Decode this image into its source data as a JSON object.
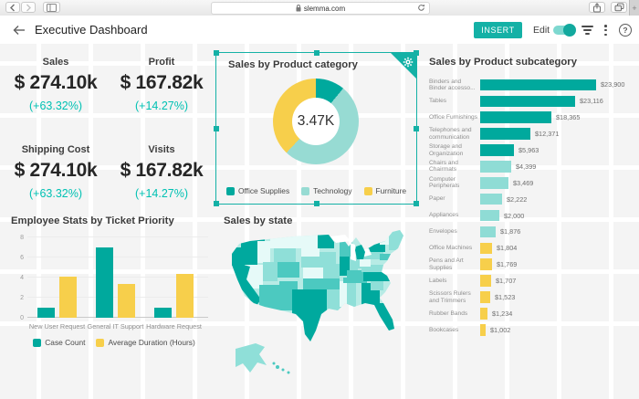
{
  "browser": {
    "url": "slemma.com",
    "new_tab_glyph": "+"
  },
  "header": {
    "title": "Executive Dashboard",
    "insert_button": "INSERT",
    "edit_label": "Edit",
    "edit_toggle_on": true,
    "help_glyph": "?"
  },
  "accent_color": "#14b1a6",
  "kpi_change_color": "#00c1b3",
  "kpis": [
    {
      "title": "Sales",
      "value": "$ 274.10k",
      "change": "(+63.32%)"
    },
    {
      "title": "Profit",
      "value": "$ 167.82k",
      "change": "(+14.27%)"
    },
    {
      "title": "Shipping Cost",
      "value": "$ 274.10k",
      "change": "(+63.32%)"
    },
    {
      "title": "Visits",
      "value": "$ 167.82k",
      "change": "(+14.27%)"
    }
  ],
  "chart_data": [
    {
      "id": "category_donut",
      "type": "pie",
      "title": "Sales by Product category",
      "selected": true,
      "center_label": "3.47K",
      "categories": [
        "Office Supplies",
        "Technology",
        "Furniture"
      ],
      "values": [
        11,
        51,
        38
      ],
      "unit": "percent (estimated from arc angles)",
      "colors": [
        "#00a99d",
        "#97dbd3",
        "#f7cf4b"
      ],
      "legend_position": "bottom"
    },
    {
      "id": "subcategory_bar",
      "type": "bar",
      "orientation": "horizontal",
      "title": "Sales by Product subcategory",
      "categories": [
        "Binders and Binder accesso...",
        "Tables",
        "Office Furnishings",
        "Telephones and communication",
        "Storage and Organization",
        "Chairs and Chairmats",
        "Computer Peripherals",
        "Paper",
        "Appliances",
        "Envelopes",
        "Office Machines",
        "Pens and Art Supplies",
        "Labels",
        "Scissors Rulers and Trimmers",
        "Rubber Bands",
        "Bookcases"
      ],
      "values": [
        23900,
        23116,
        18365,
        12371,
        5963,
        4399,
        3469,
        2222,
        2000,
        1876,
        1804,
        1769,
        1707,
        1523,
        1234,
        1002
      ],
      "value_labels": [
        "$23,900",
        "$23,116",
        "$18,365",
        "$12,371",
        "$5,963",
        "$4,399",
        "$3,469",
        "$2,222",
        "$2,000",
        "$1,876",
        "$1,804",
        "$1,769",
        "$1,707",
        "$1,523",
        "$1,234",
        "$1,002"
      ],
      "bar_fraction": [
        1.0,
        0.82,
        0.615,
        0.435,
        0.29,
        0.265,
        0.245,
        0.19,
        0.165,
        0.13,
        0.105,
        0.1,
        0.095,
        0.085,
        0.065,
        0.05
      ],
      "bar_colors": [
        "#00a99d",
        "#00a99d",
        "#00a99d",
        "#00a99d",
        "#00a99d",
        "#8fdcd5",
        "#8fdcd5",
        "#8fdcd5",
        "#8fdcd5",
        "#8fdcd5",
        "#f7cf4b",
        "#f7cf4b",
        "#f7cf4b",
        "#f7cf4b",
        "#f7cf4b",
        "#f7cf4b"
      ]
    },
    {
      "id": "employee_stats",
      "type": "bar",
      "title": "Employee Stats by Ticket Priority",
      "categories": [
        "New User Request",
        "General IT Support",
        "Hardware Request"
      ],
      "series": [
        {
          "name": "Case Count",
          "color": "#00a99d",
          "values": [
            1,
            7,
            1
          ]
        },
        {
          "name": "Average Duration (Hours)",
          "color": "#f7cf4b",
          "values": [
            4.1,
            3.4,
            4.4
          ]
        }
      ],
      "ylim": [
        0,
        8
      ],
      "yticks": [
        0,
        2,
        4,
        6,
        8
      ],
      "legend_position": "bottom"
    },
    {
      "id": "sales_by_state",
      "type": "choropleth",
      "title": "Sales by state",
      "region": "United States",
      "palette": [
        "#00a99e",
        "#4cc9c0",
        "#8fdfd8",
        "#b7ebe5",
        "#e6faf8"
      ]
    }
  ]
}
